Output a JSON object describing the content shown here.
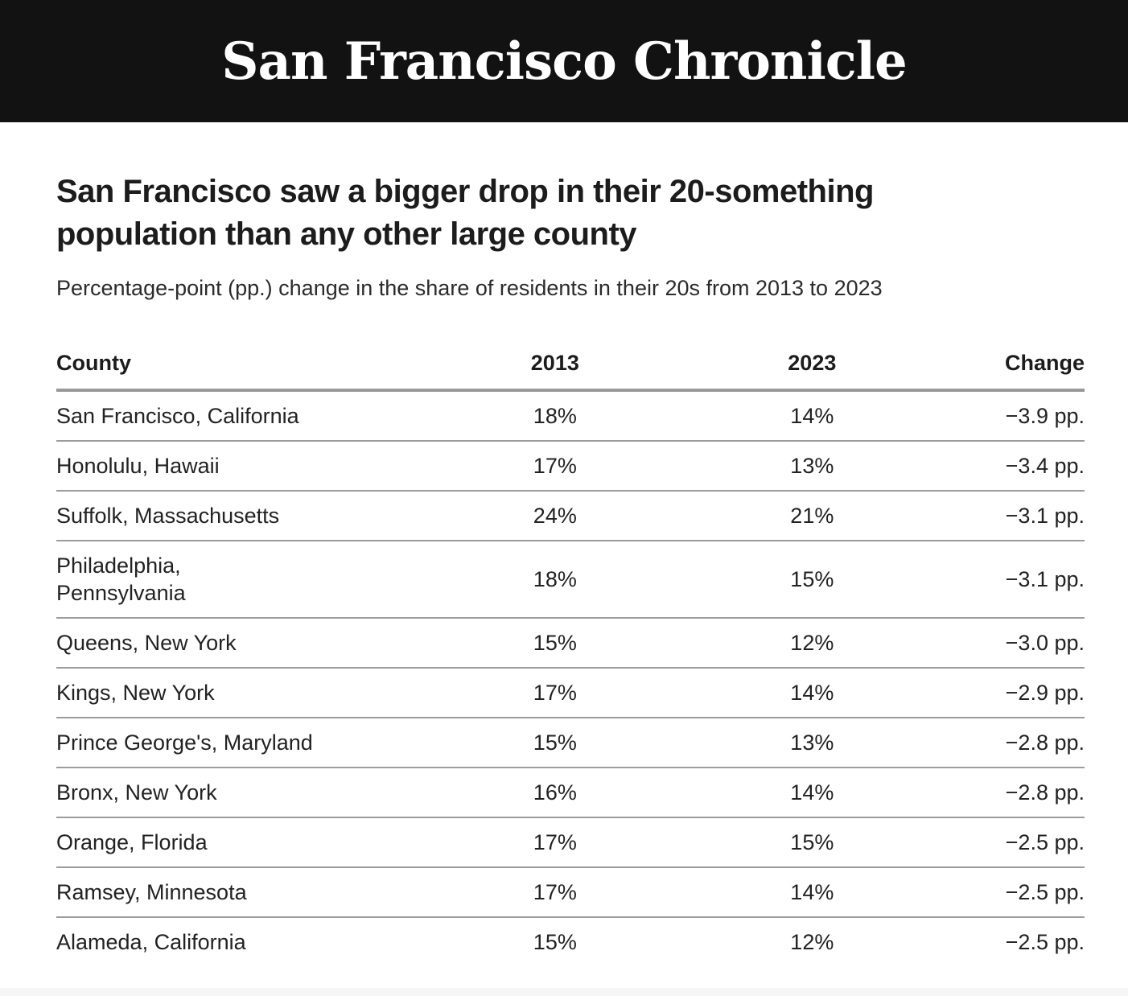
{
  "masthead": {
    "title": "San Francisco Chronicle",
    "bg_color": "#121212",
    "text_color": "#ffffff"
  },
  "headline": "San Francisco saw a bigger drop in their 20-something population than any other large county",
  "subtitle": "Percentage-point (pp.) change in the share of residents in their 20s from 2013 to 2023",
  "colors": {
    "headline_text": "#1c1c1c",
    "body_text": "#222222",
    "divider_thick": "#999999",
    "divider_thin": "#9c9c9c",
    "footer_strip": "#f6f6f6"
  },
  "chart_data": {
    "type": "table",
    "title": "San Francisco saw a bigger drop in their 20-something population than any other large county",
    "subtitle": "Percentage-point (pp.) change in the share of residents in their 20s from 2013 to 2023",
    "columns": [
      "County",
      "2013",
      "2023",
      "Change"
    ],
    "rows": [
      [
        "San Francisco, California",
        "18%",
        "14%",
        "−3.9 pp."
      ],
      [
        "Honolulu, Hawaii",
        "17%",
        "13%",
        "−3.4 pp."
      ],
      [
        "Suffolk, Massachusetts",
        "24%",
        "21%",
        "−3.1 pp."
      ],
      [
        "Philadelphia,\nPennsylvania",
        "18%",
        "15%",
        "−3.1 pp."
      ],
      [
        "Queens, New York",
        "15%",
        "12%",
        "−3.0 pp."
      ],
      [
        "Kings, New York",
        "17%",
        "14%",
        "−2.9 pp."
      ],
      [
        "Prince George's, Maryland",
        "15%",
        "13%",
        "−2.8 pp."
      ],
      [
        "Bronx, New York",
        "16%",
        "14%",
        "−2.8 pp."
      ],
      [
        "Orange, Florida",
        "17%",
        "15%",
        "−2.5 pp."
      ],
      [
        "Ramsey, Minnesota",
        "17%",
        "14%",
        "−2.5 pp."
      ],
      [
        "Alameda, California",
        "15%",
        "12%",
        "−2.5 pp."
      ]
    ]
  }
}
